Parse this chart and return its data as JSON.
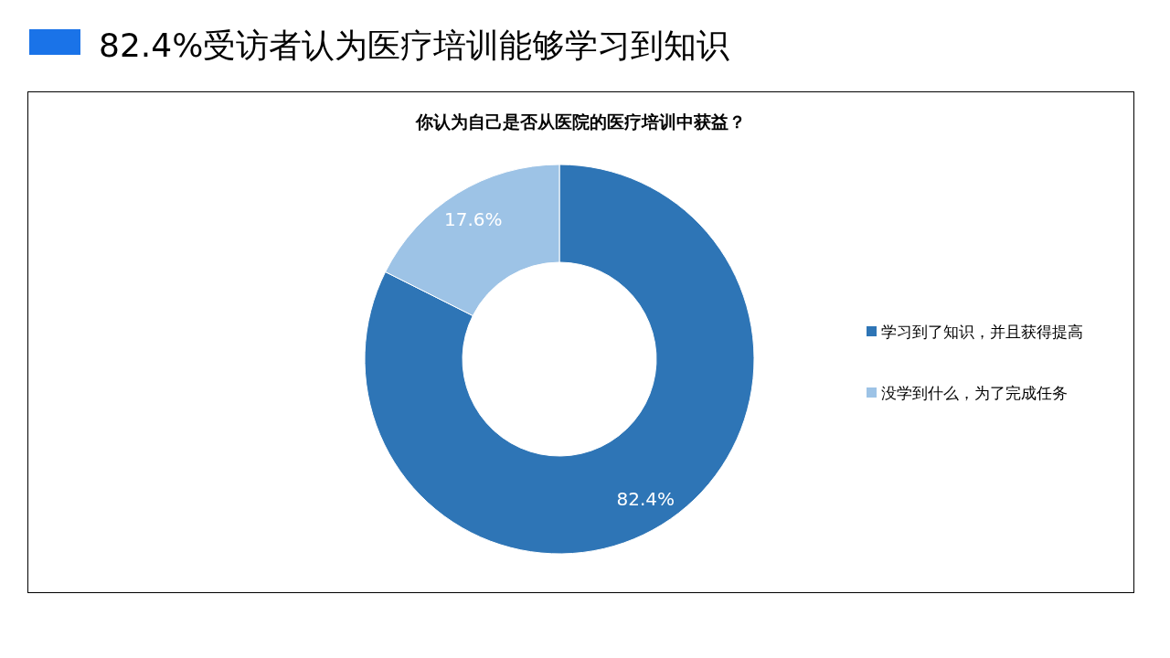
{
  "chart_data": {
    "type": "donut",
    "title": "82.4%受访者认为医疗培训能够学习到知识",
    "subtitle": "你认为自己是否从医院的医疗培训中获益？",
    "categories": [
      "学习到了知识，并且获得提高",
      "没学到什么，为了完成任务"
    ],
    "values": [
      82.4,
      17.6
    ],
    "colors": [
      "#2e75b6",
      "#9dc3e6"
    ],
    "value_labels": [
      "82.4%",
      "17.6%"
    ],
    "legend": "right"
  }
}
